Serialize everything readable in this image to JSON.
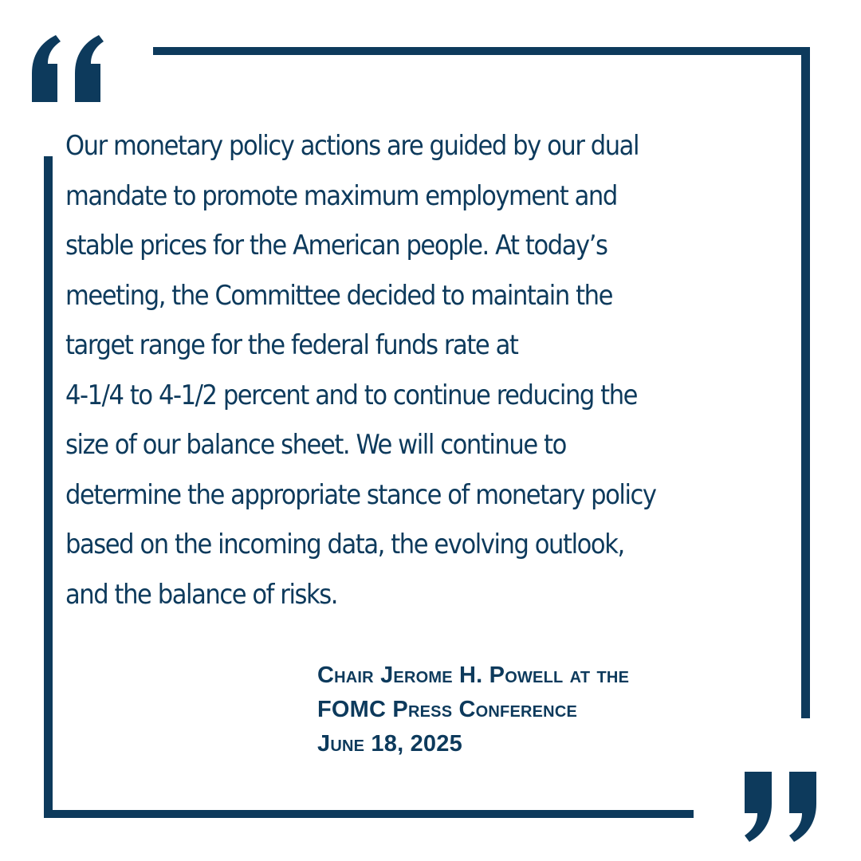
{
  "colors": {
    "primary": "#0d3a5c",
    "background": "#ffffff"
  },
  "quote": {
    "lines": [
      "Our monetary policy actions are guided by our dual",
      "mandate to promote maximum employment and",
      "stable prices for the American people. At today’s",
      "meeting, the Committee decided to maintain the",
      "target range for the federal funds rate at",
      "4-1/4 to 4-1/2 percent and to continue reducing the",
      "size of our balance sheet. We will continue to",
      "determine the appropriate stance of monetary policy",
      "based on the incoming data, the evolving outlook,",
      "and the balance of risks."
    ]
  },
  "attribution": {
    "line1": "Chair Jerome H. Powell at the",
    "line2": "FOMC Press Conference",
    "line3": "June 18, 2025"
  },
  "icons": {
    "open": "open-quote-icon",
    "close": "close-quote-icon"
  }
}
